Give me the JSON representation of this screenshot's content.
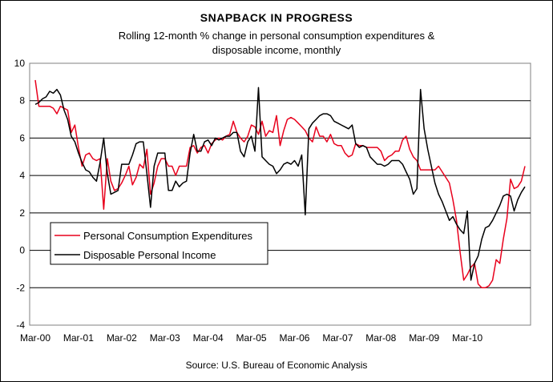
{
  "chart_data": {
    "type": "line",
    "title": "SNAPBACK IN PROGRESS",
    "subtitle_line1": "Rolling 12-month % change in personal consumption expenditures &",
    "subtitle_line2": "disposable income, monthly",
    "source": "Source: U.S. Bureau of Economic Analysis",
    "ylim": [
      -4,
      10
    ],
    "yticks": [
      "10",
      "8",
      "6",
      "4",
      "2",
      "0",
      "-2",
      "-4"
    ],
    "ytick_values": [
      10,
      8,
      6,
      4,
      2,
      0,
      -2,
      -4
    ],
    "xtick_labels": [
      "Mar-00",
      "Mar-01",
      "Mar-02",
      "Mar-03",
      "Mar-04",
      "Mar-05",
      "Mar-06",
      "Mar-07",
      "Mar-08",
      "Mar-09",
      "Mar-10"
    ],
    "grid": true,
    "legend_position": "lower-left",
    "series": [
      {
        "name": "Personal Consumption Expenditures",
        "color": "#e8001c",
        "values": [
          9.1,
          7.7,
          7.7,
          7.7,
          7.7,
          7.6,
          7.3,
          7.7,
          7.6,
          7.5,
          6.3,
          6.7,
          5.5,
          4.5,
          5.1,
          5.2,
          4.9,
          4.8,
          4.9,
          2.2,
          4.9,
          3.7,
          3.2,
          3.3,
          3.6,
          4.0,
          4.5,
          3.5,
          3.9,
          4.6,
          4.4,
          5.4,
          3.0,
          3.6,
          4.5,
          4.9,
          4.9,
          4.5,
          4.5,
          4.0,
          4.5,
          4.5,
          4.5,
          5.5,
          5.6,
          5.2,
          5.5,
          5.6,
          5.2,
          5.7,
          5.9,
          6.0,
          5.9,
          6.1,
          6.2,
          6.9,
          6.3,
          6.0,
          5.8,
          6.1,
          6.7,
          6.6,
          6.2,
          6.9,
          6.1,
          6.4,
          6.3,
          7.2,
          5.6,
          6.4,
          7.0,
          7.1,
          7.0,
          6.8,
          6.6,
          6.4,
          6.0,
          5.8,
          6.6,
          6.1,
          6.1,
          5.8,
          6.2,
          5.7,
          5.6,
          5.6,
          5.2,
          5.0,
          5.1,
          5.7,
          5.6,
          5.6,
          5.5,
          5.5,
          5.5,
          5.5,
          5.3,
          4.8,
          5.0,
          5.1,
          5.3,
          5.3,
          5.9,
          6.1,
          5.4,
          5.0,
          4.8,
          4.3,
          4.3,
          4.3,
          4.3,
          4.3,
          4.5,
          4.2,
          3.9,
          3.6,
          2.7,
          1.6,
          -0.1,
          -1.6,
          -1.3,
          -0.9,
          -0.7,
          -1.8,
          -2.0,
          -2.0,
          -1.9,
          -1.6,
          -0.5,
          -0.7,
          0.6,
          1.7,
          3.8,
          3.3,
          3.4,
          3.7,
          4.5
        ]
      },
      {
        "name": "Disposable Personal Income",
        "color": "#000000",
        "values": [
          7.8,
          7.9,
          8.1,
          8.2,
          8.5,
          8.4,
          8.6,
          8.3,
          7.5,
          7.0,
          6.1,
          5.8,
          5.2,
          4.7,
          4.3,
          4.2,
          3.9,
          3.7,
          4.7,
          6.0,
          4.1,
          3.0,
          3.1,
          3.2,
          4.6,
          4.6,
          4.6,
          5.1,
          5.7,
          5.8,
          5.8,
          4.1,
          2.3,
          4.5,
          5.2,
          5.2,
          5.2,
          3.2,
          3.2,
          3.7,
          3.4,
          3.6,
          3.7,
          5.2,
          6.2,
          5.3,
          5.3,
          5.8,
          5.9,
          5.6,
          6.0,
          5.9,
          6.0,
          6.1,
          6.1,
          6.3,
          6.3,
          5.3,
          5.0,
          5.8,
          6.1,
          5.3,
          8.7,
          5.0,
          4.8,
          4.6,
          4.5,
          4.1,
          4.3,
          4.6,
          4.7,
          4.6,
          4.8,
          4.5,
          5.1,
          1.9,
          6.5,
          6.8,
          7.0,
          7.2,
          7.3,
          7.3,
          7.2,
          6.9,
          6.8,
          6.7,
          6.6,
          6.5,
          6.7,
          5.7,
          5.5,
          5.6,
          5.5,
          5.0,
          4.8,
          4.6,
          4.6,
          4.5,
          4.6,
          4.8,
          4.8,
          4.8,
          4.6,
          4.2,
          3.8,
          3.0,
          3.3,
          8.6,
          6.5,
          5.4,
          4.5,
          3.6,
          3.0,
          2.6,
          2.1,
          1.6,
          1.8,
          1.4,
          1.1,
          0.9,
          2.1,
          -1.6,
          -0.7,
          -0.3,
          0.6,
          1.2,
          1.3,
          1.6,
          2.0,
          2.4,
          2.9,
          3.0,
          2.9,
          2.1,
          2.7,
          3.1,
          3.4
        ]
      }
    ]
  }
}
